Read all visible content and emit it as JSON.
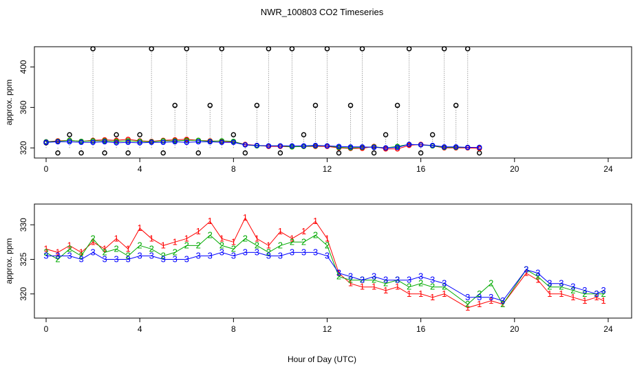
{
  "chart_data": {
    "title": "NWR_100803  CO2 Timeseries",
    "xlabel": "Hour of Day (UTC)",
    "panels": [
      {
        "type": "line",
        "ylabel": "approx. ppm",
        "xlim": [
          -0.5,
          25
        ],
        "ylim": [
          310,
          420
        ],
        "xticks": [
          0,
          4,
          8,
          12,
          16,
          20,
          24
        ],
        "yticks": [
          320,
          360,
          400
        ],
        "series": [
          {
            "name": "1",
            "color": "#ff0000",
            "values": [
              326.0,
              327.0,
              327.5,
              326.5,
              327.5,
              328.0,
              327.5,
              328.5,
              327.0,
              326.5,
              327.5,
              328.0,
              328.5,
              327.5,
              327.0,
              326.5,
              326.0,
              323.5,
              322.5,
              321.5,
              321.5,
              321.0,
              321.5,
              321.5,
              321.5,
              320.0,
              319.5,
              319.5,
              321.5,
              319.0,
              319.0,
              322.5,
              323.5,
              322.0,
              320.0,
              320.0,
              320.0,
              319.5
            ]
          },
          {
            "name": "2",
            "color": "#00aa00",
            "values": [
              326.0,
              326.5,
              327.5,
              326.5,
              327.0,
              327.0,
              326.5,
              327.0,
              326.5,
              326.0,
              327.0,
              327.0,
              327.5,
              327.5,
              326.5,
              327.0,
              326.5,
              323.0,
              322.0,
              322.0,
              322.0,
              321.0,
              321.5,
              322.0,
              322.0,
              320.5,
              320.0,
              320.5,
              321.0,
              320.0,
              321.5,
              323.5,
              323.0,
              322.0,
              320.5,
              320.5,
              320.5,
              320.5
            ]
          },
          {
            "name": "3",
            "color": "#0000ff",
            "values": [
              325.5,
              326.0,
              326.0,
              325.5,
              325.5,
              326.0,
              325.0,
              325.5,
              325.0,
              325.5,
              325.5,
              326.0,
              325.5,
              326.0,
              326.0,
              325.5,
              325.5,
              323.0,
              322.5,
              322.0,
              322.0,
              322.0,
              322.0,
              322.5,
              322.0,
              321.5,
              321.0,
              321.0,
              320.5,
              320.0,
              320.5,
              323.5,
              323.0,
              322.5,
              321.0,
              321.0,
              320.5,
              320.5
            ]
          }
        ],
        "sample_x": [
          0.0,
          0.5,
          1.0,
          1.5,
          2.0,
          2.5,
          3.0,
          3.5,
          4.0,
          4.5,
          5.0,
          5.5,
          6.0,
          6.5,
          7.0,
          7.5,
          8.0,
          8.5,
          9.0,
          9.5,
          10.0,
          10.5,
          11.0,
          11.5,
          12.0,
          12.5,
          13.0,
          13.5,
          14.0,
          14.5,
          15.0,
          15.5,
          16.0,
          16.5,
          17.0,
          17.5,
          18.0,
          18.5
        ],
        "extra_series": [
          {
            "name": "o",
            "values": [
              325.0,
              315.0,
              333.0,
              315.0,
              418.0,
              315.0,
              333.0,
              315.0,
              333.0,
              418.0,
              315.0,
              362.0,
              418.0,
              315.0,
              362.0,
              418.0,
              333.0,
              315.0,
              362.0,
              418.0,
              315.0,
              418.0,
              333.0,
              362.0,
              418.0,
              315.0,
              362.0,
              418.0,
              315.0,
              333.0,
              362.0,
              418.0,
              315.0,
              333.0,
              418.0,
              362.0,
              418.0,
              315.0
            ]
          }
        ]
      },
      {
        "type": "line",
        "ylabel": "approx. ppm",
        "xlim": [
          -0.5,
          25
        ],
        "ylim": [
          316.5,
          333
        ],
        "xticks": [
          0,
          4,
          8,
          12,
          16,
          20,
          24
        ],
        "yticks": [
          320,
          325,
          330
        ],
        "series": [
          {
            "name": "1",
            "color": "#ff0000",
            "values": [
              326.5,
              326.0,
              327.0,
              326.0,
              327.5,
              326.5,
              328.0,
              326.5,
              329.5,
              328.0,
              327.0,
              327.5,
              328.0,
              329.0,
              330.5,
              328.0,
              327.5,
              331.0,
              328.0,
              327.0,
              329.0,
              328.0,
              329.0,
              330.5,
              328.0,
              323.0,
              321.5,
              321.0,
              321.0,
              320.5,
              321.0,
              320.0,
              320.0,
              319.5,
              320.0,
              318.0,
              318.5,
              319.0,
              318.5,
              323.0,
              322.0,
              320.0,
              320.0,
              319.5,
              319.0,
              319.5,
              319.0
            ]
          },
          {
            "name": "2",
            "color": "#00aa00",
            "values": [
              326.0,
              325.0,
              326.5,
              325.5,
              328.0,
              326.0,
              326.5,
              325.5,
              327.0,
              326.5,
              325.5,
              326.0,
              327.0,
              327.0,
              328.5,
              327.0,
              326.5,
              328.0,
              327.0,
              326.0,
              327.0,
              327.5,
              327.5,
              328.5,
              327.0,
              322.5,
              322.0,
              322.0,
              322.0,
              321.5,
              322.0,
              321.0,
              321.5,
              321.0,
              321.0,
              318.5,
              320.0,
              321.5,
              318.5,
              323.5,
              322.5,
              321.0,
              321.0,
              320.5,
              320.0,
              320.0,
              320.0
            ]
          },
          {
            "name": "3",
            "color": "#0000ff",
            "values": [
              325.5,
              325.5,
              325.5,
              325.0,
              326.0,
              325.0,
              325.0,
              325.0,
              325.5,
              325.5,
              325.0,
              325.0,
              325.0,
              325.5,
              325.5,
              326.0,
              325.5,
              326.0,
              326.0,
              325.5,
              325.5,
              326.0,
              326.0,
              326.0,
              325.5,
              323.0,
              322.5,
              322.0,
              322.5,
              322.0,
              322.0,
              322.0,
              322.5,
              322.0,
              321.5,
              319.5,
              319.5,
              319.5,
              319.0,
              323.5,
              323.0,
              321.5,
              321.5,
              321.0,
              320.5,
              320.0,
              320.5
            ]
          }
        ],
        "sample_x": [
          0.0,
          0.5,
          1.0,
          1.5,
          2.0,
          2.5,
          3.0,
          3.5,
          4.0,
          4.5,
          5.0,
          5.5,
          6.0,
          6.5,
          7.0,
          7.5,
          8.0,
          8.5,
          9.0,
          9.5,
          10.0,
          10.5,
          11.0,
          11.5,
          12.0,
          12.5,
          13.0,
          13.5,
          14.0,
          14.5,
          15.0,
          15.5,
          16.0,
          16.5,
          17.0,
          18.0,
          18.5,
          19.0,
          19.5,
          20.5,
          21.0,
          21.5,
          22.0,
          22.5,
          23.0,
          23.5,
          23.8
        ]
      }
    ]
  }
}
